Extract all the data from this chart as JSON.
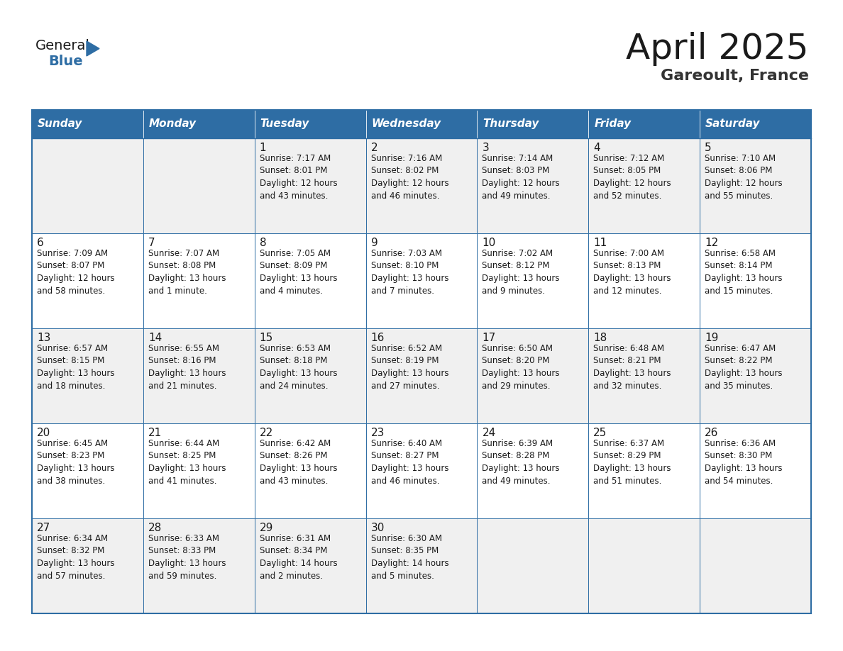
{
  "title": "April 2025",
  "subtitle": "Gareoult, France",
  "header_color": "#2E6DA4",
  "header_text_color": "#FFFFFF",
  "cell_bg_color": "#F0F0F0",
  "cell_bg_color2": "#FFFFFF",
  "border_color": "#2E6DA4",
  "text_color": "#1a1a1a",
  "day_names": [
    "Sunday",
    "Monday",
    "Tuesday",
    "Wednesday",
    "Thursday",
    "Friday",
    "Saturday"
  ],
  "weeks": [
    [
      {
        "day": "",
        "text": ""
      },
      {
        "day": "",
        "text": ""
      },
      {
        "day": "1",
        "text": "Sunrise: 7:17 AM\nSunset: 8:01 PM\nDaylight: 12 hours\nand 43 minutes."
      },
      {
        "day": "2",
        "text": "Sunrise: 7:16 AM\nSunset: 8:02 PM\nDaylight: 12 hours\nand 46 minutes."
      },
      {
        "day": "3",
        "text": "Sunrise: 7:14 AM\nSunset: 8:03 PM\nDaylight: 12 hours\nand 49 minutes."
      },
      {
        "day": "4",
        "text": "Sunrise: 7:12 AM\nSunset: 8:05 PM\nDaylight: 12 hours\nand 52 minutes."
      },
      {
        "day": "5",
        "text": "Sunrise: 7:10 AM\nSunset: 8:06 PM\nDaylight: 12 hours\nand 55 minutes."
      }
    ],
    [
      {
        "day": "6",
        "text": "Sunrise: 7:09 AM\nSunset: 8:07 PM\nDaylight: 12 hours\nand 58 minutes."
      },
      {
        "day": "7",
        "text": "Sunrise: 7:07 AM\nSunset: 8:08 PM\nDaylight: 13 hours\nand 1 minute."
      },
      {
        "day": "8",
        "text": "Sunrise: 7:05 AM\nSunset: 8:09 PM\nDaylight: 13 hours\nand 4 minutes."
      },
      {
        "day": "9",
        "text": "Sunrise: 7:03 AM\nSunset: 8:10 PM\nDaylight: 13 hours\nand 7 minutes."
      },
      {
        "day": "10",
        "text": "Sunrise: 7:02 AM\nSunset: 8:12 PM\nDaylight: 13 hours\nand 9 minutes."
      },
      {
        "day": "11",
        "text": "Sunrise: 7:00 AM\nSunset: 8:13 PM\nDaylight: 13 hours\nand 12 minutes."
      },
      {
        "day": "12",
        "text": "Sunrise: 6:58 AM\nSunset: 8:14 PM\nDaylight: 13 hours\nand 15 minutes."
      }
    ],
    [
      {
        "day": "13",
        "text": "Sunrise: 6:57 AM\nSunset: 8:15 PM\nDaylight: 13 hours\nand 18 minutes."
      },
      {
        "day": "14",
        "text": "Sunrise: 6:55 AM\nSunset: 8:16 PM\nDaylight: 13 hours\nand 21 minutes."
      },
      {
        "day": "15",
        "text": "Sunrise: 6:53 AM\nSunset: 8:18 PM\nDaylight: 13 hours\nand 24 minutes."
      },
      {
        "day": "16",
        "text": "Sunrise: 6:52 AM\nSunset: 8:19 PM\nDaylight: 13 hours\nand 27 minutes."
      },
      {
        "day": "17",
        "text": "Sunrise: 6:50 AM\nSunset: 8:20 PM\nDaylight: 13 hours\nand 29 minutes."
      },
      {
        "day": "18",
        "text": "Sunrise: 6:48 AM\nSunset: 8:21 PM\nDaylight: 13 hours\nand 32 minutes."
      },
      {
        "day": "19",
        "text": "Sunrise: 6:47 AM\nSunset: 8:22 PM\nDaylight: 13 hours\nand 35 minutes."
      }
    ],
    [
      {
        "day": "20",
        "text": "Sunrise: 6:45 AM\nSunset: 8:23 PM\nDaylight: 13 hours\nand 38 minutes."
      },
      {
        "day": "21",
        "text": "Sunrise: 6:44 AM\nSunset: 8:25 PM\nDaylight: 13 hours\nand 41 minutes."
      },
      {
        "day": "22",
        "text": "Sunrise: 6:42 AM\nSunset: 8:26 PM\nDaylight: 13 hours\nand 43 minutes."
      },
      {
        "day": "23",
        "text": "Sunrise: 6:40 AM\nSunset: 8:27 PM\nDaylight: 13 hours\nand 46 minutes."
      },
      {
        "day": "24",
        "text": "Sunrise: 6:39 AM\nSunset: 8:28 PM\nDaylight: 13 hours\nand 49 minutes."
      },
      {
        "day": "25",
        "text": "Sunrise: 6:37 AM\nSunset: 8:29 PM\nDaylight: 13 hours\nand 51 minutes."
      },
      {
        "day": "26",
        "text": "Sunrise: 6:36 AM\nSunset: 8:30 PM\nDaylight: 13 hours\nand 54 minutes."
      }
    ],
    [
      {
        "day": "27",
        "text": "Sunrise: 6:34 AM\nSunset: 8:32 PM\nDaylight: 13 hours\nand 57 minutes."
      },
      {
        "day": "28",
        "text": "Sunrise: 6:33 AM\nSunset: 8:33 PM\nDaylight: 13 hours\nand 59 minutes."
      },
      {
        "day": "29",
        "text": "Sunrise: 6:31 AM\nSunset: 8:34 PM\nDaylight: 14 hours\nand 2 minutes."
      },
      {
        "day": "30",
        "text": "Sunrise: 6:30 AM\nSunset: 8:35 PM\nDaylight: 14 hours\nand 5 minutes."
      },
      {
        "day": "",
        "text": ""
      },
      {
        "day": "",
        "text": ""
      },
      {
        "day": "",
        "text": ""
      }
    ]
  ],
  "logo_general_color": "#1a1a1a",
  "logo_blue_color": "#2E6DA4",
  "fig_width": 11.88,
  "fig_height": 9.18,
  "fig_dpi": 100,
  "title_fontsize": 36,
  "subtitle_fontsize": 16,
  "header_fontsize": 11,
  "day_num_fontsize": 11,
  "cell_text_fontsize": 8.5,
  "logo_fontsize_general": 14,
  "logo_fontsize_blue": 14
}
